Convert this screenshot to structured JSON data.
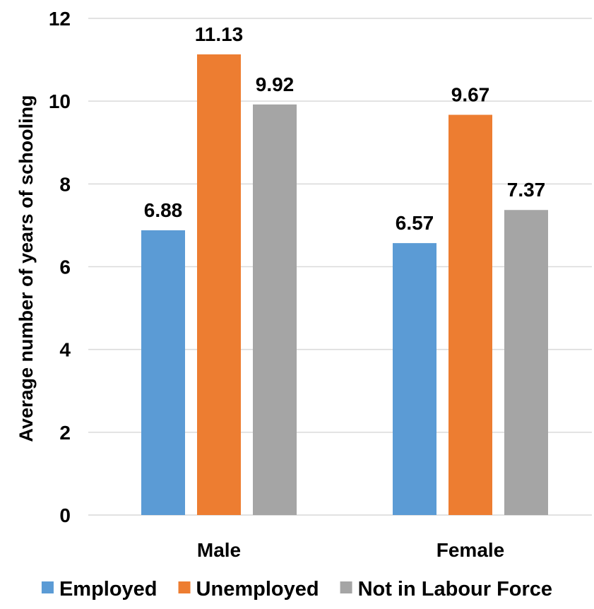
{
  "chart_data": {
    "type": "bar",
    "title": "",
    "xlabel": "",
    "ylabel": "Average number of years of schooling",
    "ylim": [
      0,
      12
    ],
    "yticks": [
      0,
      2,
      4,
      6,
      8,
      10,
      12
    ],
    "grid": true,
    "legend_position": "bottom",
    "categories": [
      "Male",
      "Female"
    ],
    "series": [
      {
        "name": "Employed",
        "values": [
          6.88,
          6.57
        ],
        "labels": [
          "6.88",
          "6.57"
        ],
        "color": "#5b9bd5"
      },
      {
        "name": "Unemployed",
        "values": [
          11.13,
          9.67
        ],
        "labels": [
          "11.13",
          "9.67"
        ],
        "color": "#ed7d31"
      },
      {
        "name": "Not in Labour Force",
        "values": [
          9.92,
          7.37
        ],
        "labels": [
          "9.92",
          "7.37"
        ],
        "color": "#a5a5a5"
      }
    ]
  }
}
